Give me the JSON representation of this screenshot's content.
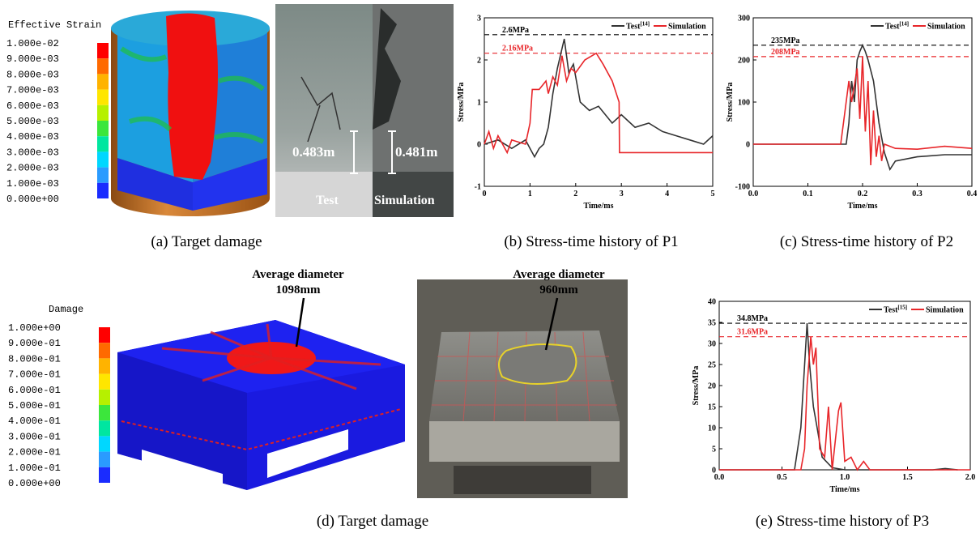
{
  "panel_a": {
    "legend_title": "Effective Strain",
    "legend_labels": [
      "1.000e-02",
      "9.000e-03",
      "8.000e-03",
      "7.000e-03",
      "6.000e-03",
      "5.000e-03",
      "4.000e-03",
      "3.000e-03",
      "2.000e-03",
      "1.000e-03",
      "0.000e+00"
    ],
    "dimension_test": "0.483m",
    "dimension_simulation": "0.481m",
    "label_test": "Test",
    "label_simulation": "Simulation",
    "caption": "(a) Target damage"
  },
  "panel_d": {
    "legend_title": "Damage",
    "legend_labels": [
      "1.000e+00",
      "9.000e-01",
      "8.000e-01",
      "7.000e-01",
      "6.000e-01",
      "5.000e-01",
      "4.000e-01",
      "3.000e-01",
      "2.000e-01",
      "1.000e-01",
      "0.000e+00"
    ],
    "annotation_simulation": [
      "Average diameter",
      "1098mm"
    ],
    "annotation_test": [
      "Average diameter",
      "960mm"
    ],
    "caption": "(d) Target damage"
  },
  "chart_data": [
    {
      "type": "line",
      "caption": "(b) Stress-time history of P1",
      "xlabel": "Time/ms",
      "ylabel": "Stress/MPa",
      "xlim": [
        0,
        5
      ],
      "ylim": [
        -1,
        3
      ],
      "xticks": [
        0,
        1,
        2,
        3,
        4,
        5
      ],
      "yticks": [
        -1,
        0,
        1,
        2,
        3
      ],
      "reference_lines": [
        {
          "value": 2.6,
          "label": "2.6MPa",
          "color": "#000000"
        },
        {
          "value": 2.16,
          "label": "2.16MPa",
          "color": "#e8262a"
        }
      ],
      "series": [
        {
          "name": "Test",
          "reference": "[14]",
          "color": "#333333",
          "x": [
            0,
            0.3,
            0.6,
            0.9,
            1.0,
            1.1,
            1.2,
            1.3,
            1.4,
            1.5,
            1.6,
            1.75,
            1.85,
            1.95,
            2.1,
            2.3,
            2.5,
            2.8,
            3.0,
            3.3,
            3.6,
            3.9,
            4.2,
            4.5,
            4.8,
            5.0
          ],
          "values": [
            0,
            0.1,
            -0.1,
            0.1,
            -0.1,
            -0.3,
            -0.1,
            0,
            0.4,
            1.2,
            1.8,
            2.5,
            1.7,
            1.9,
            1.0,
            0.8,
            0.9,
            0.5,
            0.7,
            0.4,
            0.5,
            0.3,
            0.2,
            0.1,
            0,
            0.2
          ]
        },
        {
          "name": "Simulation",
          "reference": null,
          "color": "#e8262a",
          "x": [
            0,
            0.1,
            0.2,
            0.3,
            0.5,
            0.6,
            0.9,
            1.0,
            1.05,
            1.2,
            1.35,
            1.4,
            1.5,
            1.6,
            1.7,
            1.8,
            1.9,
            2.0,
            2.2,
            2.45,
            2.6,
            2.8,
            2.95,
            2.96,
            5.0
          ],
          "values": [
            0,
            0.3,
            -0.1,
            0.2,
            -0.2,
            0.1,
            0,
            0.5,
            1.3,
            1.3,
            1.5,
            1.2,
            1.6,
            1.4,
            2.1,
            1.5,
            1.8,
            1.7,
            2.0,
            2.16,
            1.9,
            1.5,
            1.0,
            -0.2,
            -0.2
          ]
        }
      ]
    },
    {
      "type": "line",
      "caption": "(c) Stress-time history of P2",
      "xlabel": "Time/ms",
      "ylabel": "Stress/MPa",
      "xlim": [
        0,
        0.4
      ],
      "ylim": [
        -100,
        300
      ],
      "xticks": [
        {
          "value": 0,
          "label": "0.0"
        },
        0.1,
        0.2,
        0.3,
        0.4
      ],
      "yticks": [
        -100,
        0,
        100,
        200,
        300
      ],
      "reference_lines": [
        {
          "value": 235,
          "label": "235MPa",
          "color": "#000000"
        },
        {
          "value": 208,
          "label": "208MPa",
          "color": "#e8262a"
        }
      ],
      "series": [
        {
          "name": "Test",
          "reference": "[14]",
          "color": "#333333",
          "x": [
            0,
            0.17,
            0.175,
            0.18,
            0.185,
            0.19,
            0.195,
            0.2,
            0.205,
            0.21,
            0.22,
            0.23,
            0.24,
            0.25,
            0.26,
            0.3,
            0.35,
            0.4
          ],
          "values": [
            0,
            0,
            50,
            150,
            100,
            200,
            220,
            235,
            220,
            200,
            150,
            50,
            -20,
            -60,
            -40,
            -30,
            -25,
            -25
          ]
        },
        {
          "name": "Simulation",
          "reference": null,
          "color": "#e8262a",
          "x": [
            0,
            0.16,
            0.165,
            0.175,
            0.18,
            0.19,
            0.195,
            0.2,
            0.205,
            0.21,
            0.215,
            0.22,
            0.225,
            0.23,
            0.235,
            0.24,
            0.26,
            0.3,
            0.35,
            0.4
          ],
          "values": [
            0,
            0,
            50,
            150,
            100,
            180,
            60,
            208,
            30,
            150,
            -50,
            80,
            -30,
            20,
            -40,
            0,
            -10,
            -12,
            -5,
            -10
          ]
        }
      ]
    },
    {
      "type": "line",
      "caption": "(e) Stress-time history of P3",
      "xlabel": "Time/ms",
      "ylabel": "Stress/MPa",
      "xlim": [
        0,
        2
      ],
      "ylim": [
        0,
        40
      ],
      "xticks": [
        {
          "value": 0,
          "label": "0.0"
        },
        0.5,
        {
          "value": 1,
          "label": "1.0"
        },
        1.5,
        {
          "value": 2,
          "label": "2.0"
        }
      ],
      "yticks": [
        0,
        5,
        10,
        15,
        20,
        25,
        30,
        35,
        40
      ],
      "reference_lines": [
        {
          "value": 34.8,
          "label": "34.8MPa",
          "color": "#000000"
        },
        {
          "value": 31.6,
          "label": "31.6MPa",
          "color": "#e8262a"
        }
      ],
      "series": [
        {
          "name": "Test",
          "reference": "[15]",
          "color": "#333333",
          "x": [
            0,
            0.6,
            0.65,
            0.7,
            0.72,
            0.75,
            0.78,
            0.82,
            0.9,
            1.0,
            1.7,
            1.8,
            1.9
          ],
          "values": [
            0,
            0,
            10,
            34.8,
            25,
            15,
            10,
            3,
            0.5,
            0,
            0,
            0.3,
            0
          ]
        },
        {
          "name": "Simulation",
          "reference": null,
          "color": "#e8262a",
          "x": [
            0,
            0.65,
            0.68,
            0.7,
            0.73,
            0.75,
            0.77,
            0.8,
            0.84,
            0.87,
            0.9,
            0.95,
            0.97,
            1.0,
            1.05,
            1.1,
            1.15,
            1.2,
            2.0
          ],
          "values": [
            0,
            0,
            5,
            20,
            31.6,
            25,
            29,
            5,
            3,
            15,
            0,
            14,
            16,
            2,
            3,
            0,
            2,
            0,
            0
          ]
        }
      ]
    }
  ]
}
